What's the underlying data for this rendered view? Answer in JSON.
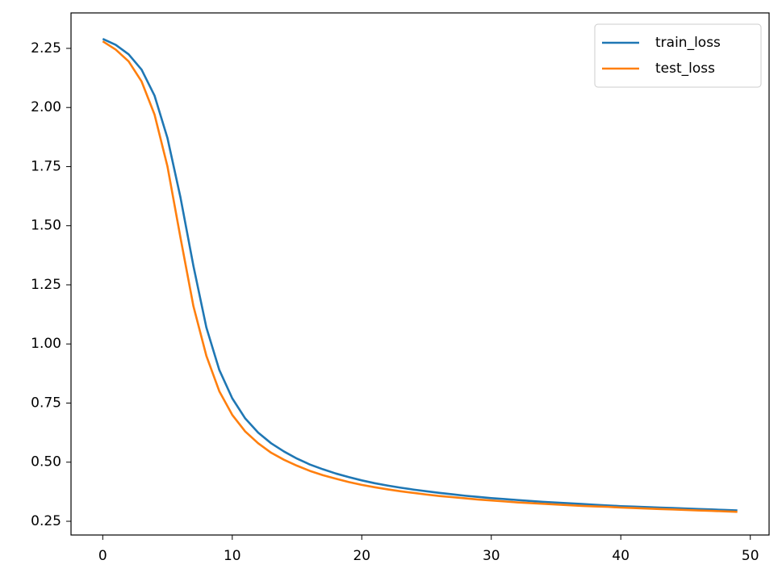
{
  "chart_data": {
    "type": "line",
    "x": [
      0,
      1,
      2,
      3,
      4,
      5,
      6,
      7,
      8,
      9,
      10,
      11,
      12,
      13,
      14,
      15,
      16,
      17,
      18,
      19,
      20,
      21,
      22,
      23,
      24,
      25,
      26,
      27,
      28,
      29,
      30,
      31,
      32,
      33,
      34,
      35,
      36,
      37,
      38,
      39,
      40,
      41,
      42,
      43,
      44,
      45,
      46,
      47,
      48,
      49
    ],
    "series": [
      {
        "name": "train_loss",
        "color": "#1f77b4",
        "values": [
          2.29,
          2.265,
          2.225,
          2.16,
          2.05,
          1.87,
          1.62,
          1.33,
          1.07,
          0.89,
          0.77,
          0.685,
          0.625,
          0.58,
          0.545,
          0.515,
          0.49,
          0.47,
          0.452,
          0.437,
          0.423,
          0.411,
          0.401,
          0.392,
          0.384,
          0.377,
          0.37,
          0.364,
          0.358,
          0.353,
          0.348,
          0.344,
          0.34,
          0.336,
          0.332,
          0.329,
          0.326,
          0.323,
          0.32,
          0.317,
          0.314,
          0.312,
          0.31,
          0.308,
          0.306,
          0.304,
          0.302,
          0.3,
          0.298,
          0.296
        ]
      },
      {
        "name": "test_loss",
        "color": "#ff7f0e",
        "values": [
          2.28,
          2.245,
          2.195,
          2.11,
          1.97,
          1.75,
          1.45,
          1.16,
          0.95,
          0.8,
          0.7,
          0.63,
          0.58,
          0.54,
          0.51,
          0.485,
          0.463,
          0.445,
          0.43,
          0.416,
          0.404,
          0.394,
          0.385,
          0.377,
          0.37,
          0.363,
          0.357,
          0.352,
          0.347,
          0.342,
          0.338,
          0.334,
          0.33,
          0.327,
          0.324,
          0.321,
          0.318,
          0.315,
          0.313,
          0.311,
          0.308,
          0.306,
          0.304,
          0.302,
          0.3,
          0.298,
          0.296,
          0.294,
          0.292,
          0.29
        ]
      }
    ],
    "xlim": [
      -2.45,
      51.45
    ],
    "ylim": [
      0.192,
      2.4
    ],
    "xticks": [
      0,
      10,
      20,
      30,
      40,
      50
    ],
    "yticks": [
      0.25,
      {
        "value": 0.5,
        "label": "0.50"
      },
      0.75,
      {
        "value": 1,
        "label": "1.00"
      },
      1.25,
      {
        "value": 1.5,
        "label": "1.50"
      },
      1.75,
      {
        "value": 2,
        "label": "2.00"
      },
      2.25
    ],
    "grid": false,
    "legend": "upper right"
  }
}
